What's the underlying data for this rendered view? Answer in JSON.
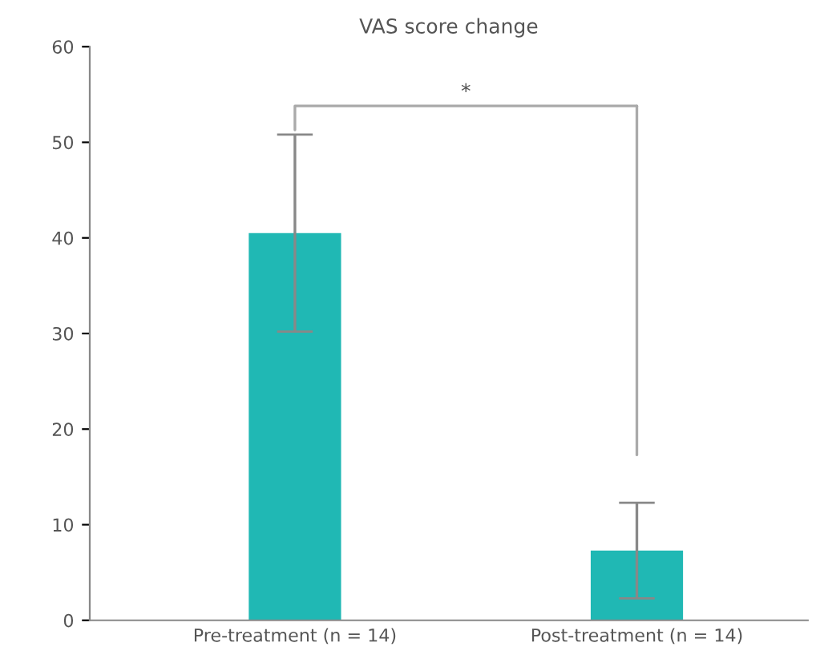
{
  "chart_data": {
    "type": "bar",
    "title": "VAS score change",
    "categories": [
      "Pre-treatment (n = 14)",
      "Post-treatment (n = 14)"
    ],
    "values": [
      40.5,
      7.3
    ],
    "errors": [
      10.3,
      5
    ],
    "color": "#20b8b4",
    "ylim": [
      0,
      60
    ],
    "yticks": [
      0,
      10,
      20,
      30,
      40,
      50,
      60
    ],
    "grid": false,
    "annotations": [
      "*"
    ]
  }
}
